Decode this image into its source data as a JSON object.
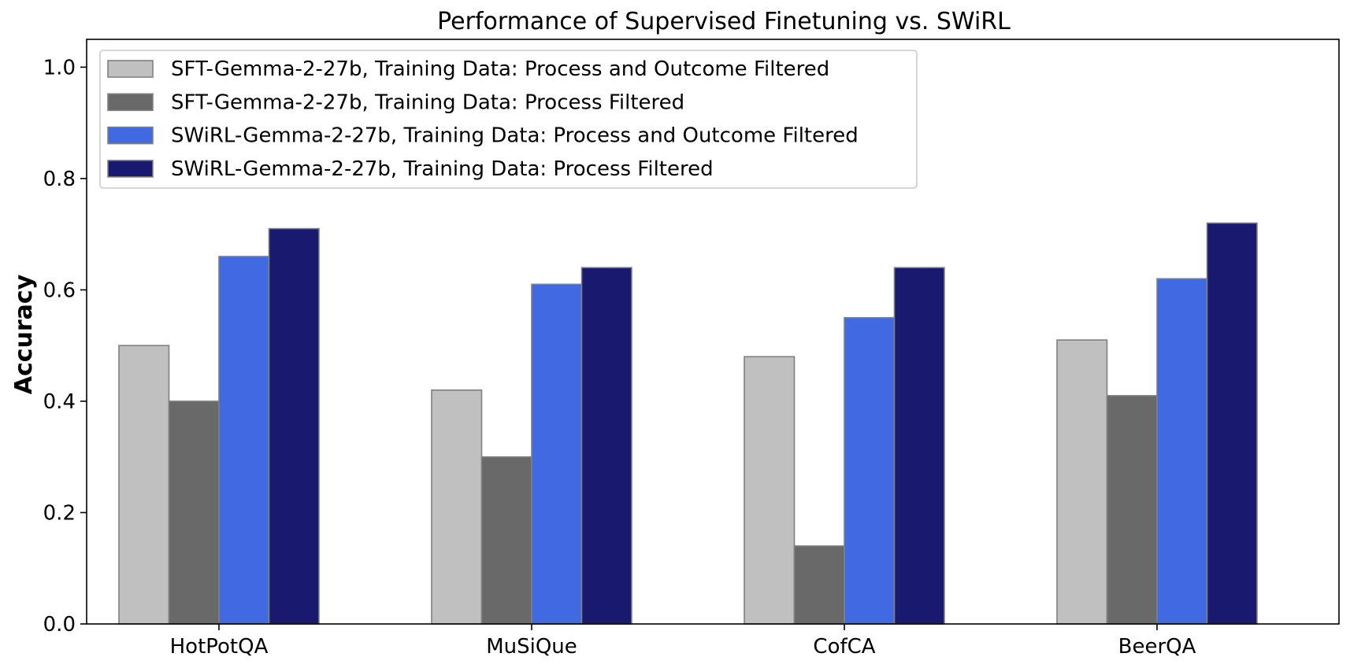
{
  "chart_data": {
    "type": "bar",
    "title": "Performance of Supervised Finetuning vs. SWiRL",
    "xlabel": "",
    "ylabel": "Accuracy",
    "ylim": [
      0,
      1.05
    ],
    "yticks": [
      "0.0",
      "0.2",
      "0.4",
      "0.6",
      "0.8",
      "1.0"
    ],
    "categories": [
      "HotPotQA",
      "MuSiQue",
      "CofCA",
      "BeerQA"
    ],
    "series": [
      {
        "name": "SFT-Gemma-2-27b, Training Data: Process and Outcome Filtered",
        "color": "#c0c0c0",
        "values": [
          0.5,
          0.42,
          0.48,
          0.51
        ]
      },
      {
        "name": "SFT-Gemma-2-27b, Training Data: Process Filtered",
        "color": "#696969",
        "values": [
          0.4,
          0.3,
          0.14,
          0.41
        ]
      },
      {
        "name": "SWiRL-Gemma-2-27b, Training Data: Process and Outcome Filtered",
        "color": "#4169e1",
        "values": [
          0.66,
          0.61,
          0.55,
          0.62
        ]
      },
      {
        "name": "SWiRL-Gemma-2-27b, Training Data: Process Filtered",
        "color": "#191970",
        "values": [
          0.71,
          0.64,
          0.64,
          0.72
        ]
      }
    ],
    "bar_edge_color": "#808080",
    "grid": false,
    "legend_position": "upper-left"
  }
}
